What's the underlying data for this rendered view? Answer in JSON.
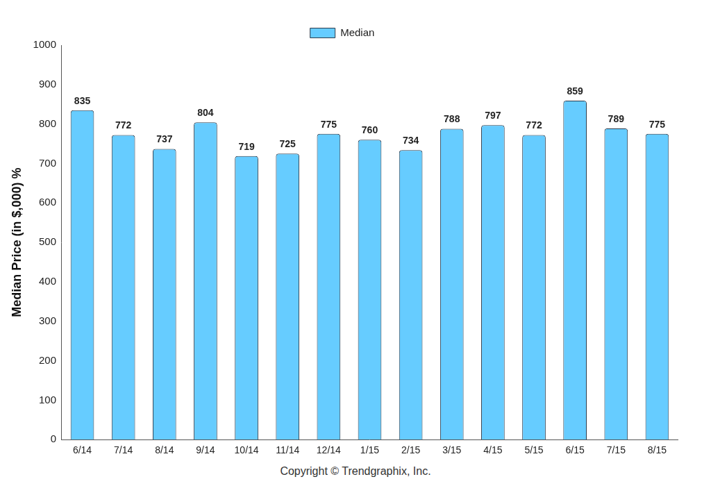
{
  "chart_data": {
    "type": "bar",
    "y_label": "Median Price (in $,000) %",
    "caption": "Copyright © Trendgraphix, Inc.",
    "categories": [
      "6/14",
      "7/14",
      "8/14",
      "9/14",
      "10/14",
      "11/14",
      "12/14",
      "1/15",
      "2/15",
      "3/15",
      "4/15",
      "5/15",
      "6/15",
      "7/15",
      "8/15"
    ],
    "series": [
      {
        "name": "Median",
        "color": "#66ccff",
        "values": [
          835,
          772,
          737,
          804,
          719,
          725,
          775,
          760,
          734,
          788,
          797,
          772,
          859,
          789,
          775
        ]
      }
    ],
    "ylim": [
      0,
      1000
    ],
    "yticks": [
      0,
      100,
      200,
      300,
      400,
      500,
      600,
      700,
      800,
      900,
      1000
    ],
    "grid": false,
    "legend": "top",
    "data_labels": true
  }
}
